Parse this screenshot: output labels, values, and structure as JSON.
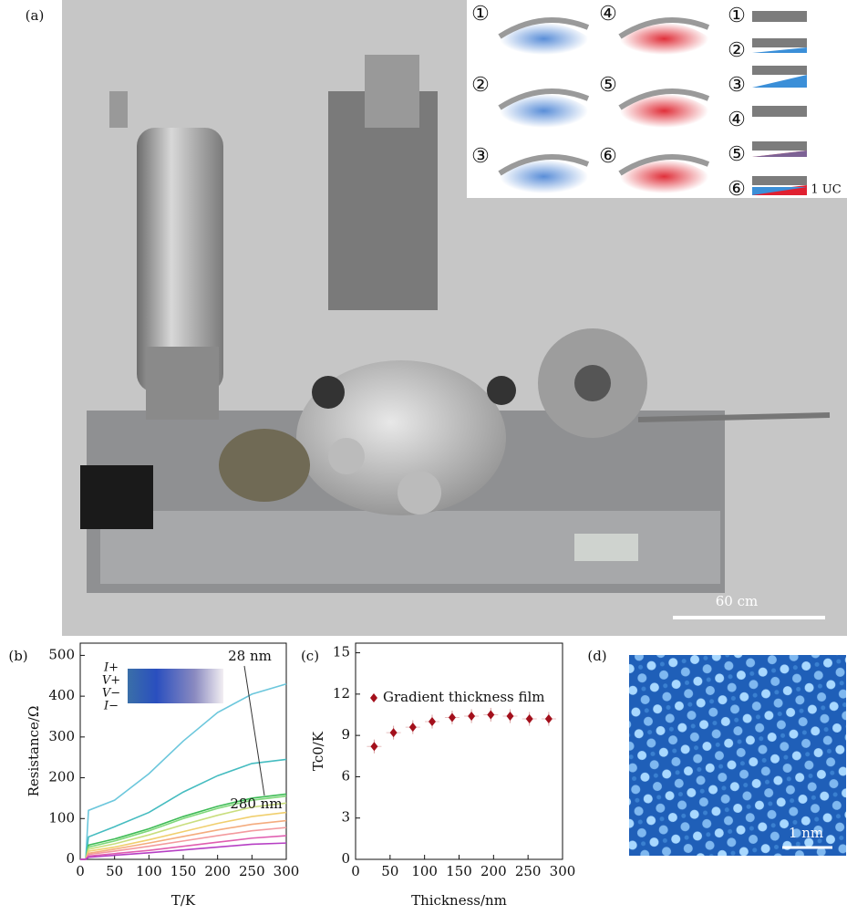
{
  "panels": {
    "a": "(a)",
    "b": "(b)",
    "c": "(c)",
    "d": "(d)"
  },
  "photo": {
    "scale_bar": "60 cm",
    "inset": {
      "steps_left": [
        "①",
        "②",
        "③"
      ],
      "steps_mid": [
        "④",
        "⑤",
        "⑥"
      ],
      "steps_right": [
        "①",
        "②",
        "③",
        "④",
        "⑤",
        "⑥"
      ],
      "layer_note": "1 UC"
    }
  },
  "stm_image": {
    "scale_bar": "1 nm"
  },
  "chart_data": [
    {
      "type": "line",
      "x_label": "T/K",
      "y_label": "Resistance/Ω",
      "x": [
        0,
        8,
        12,
        50,
        100,
        150,
        200,
        250,
        300
      ],
      "xlim": [
        0,
        300
      ],
      "xticks": [
        0,
        50,
        100,
        150,
        200,
        250,
        300
      ],
      "ylim": [
        0,
        530
      ],
      "yticks": [
        0,
        100,
        200,
        300,
        400,
        500
      ],
      "inset_labels": [
        "I+",
        "V+",
        "V−",
        "I−"
      ],
      "annotations": [
        "28 nm",
        "280 nm"
      ],
      "series": [
        {
          "color": "#6cc7dc",
          "values": [
            0,
            0,
            120,
            145,
            210,
            290,
            360,
            405,
            430
          ]
        },
        {
          "color": "#45bcc0",
          "values": [
            0,
            0,
            55,
            80,
            115,
            165,
            205,
            235,
            245
          ]
        },
        {
          "color": "#3dbb55",
          "values": [
            0,
            0,
            35,
            50,
            75,
            105,
            130,
            150,
            160
          ]
        },
        {
          "color": "#7fd87a",
          "values": [
            0,
            0,
            30,
            45,
            70,
            100,
            125,
            145,
            155
          ]
        },
        {
          "color": "#c9de7e",
          "values": [
            0,
            0,
            25,
            38,
            60,
            85,
            108,
            128,
            138
          ]
        },
        {
          "color": "#f0cf6e",
          "values": [
            0,
            0,
            20,
            30,
            48,
            68,
            88,
            105,
            115
          ]
        },
        {
          "color": "#f4ac7e",
          "values": [
            0,
            0,
            15,
            25,
            40,
            56,
            72,
            86,
            95
          ]
        },
        {
          "color": "#f39a9e",
          "values": [
            0,
            0,
            12,
            20,
            32,
            45,
            58,
            70,
            78
          ]
        },
        {
          "color": "#e05eb0",
          "values": [
            0,
            0,
            8,
            14,
            22,
            32,
            42,
            52,
            58
          ]
        },
        {
          "color": "#b63fc4",
          "values": [
            0,
            0,
            5,
            10,
            16,
            23,
            30,
            37,
            40
          ]
        }
      ]
    },
    {
      "type": "scatter",
      "x_label": "Thickness/nm",
      "y_label": "Tc0/K",
      "xlim": [
        0,
        300
      ],
      "xticks": [
        0,
        50,
        100,
        150,
        200,
        250,
        300
      ],
      "ylim": [
        0,
        15.7
      ],
      "yticks": [
        0,
        3,
        6,
        9,
        12,
        15
      ],
      "series": [
        {
          "name": "Gradient thickness film",
          "color": "#a3101c",
          "x": [
            27,
            55,
            83,
            111,
            140,
            168,
            196,
            224,
            252,
            280
          ],
          "values": [
            8.2,
            9.2,
            9.6,
            10.0,
            10.3,
            10.4,
            10.5,
            10.4,
            10.2,
            10.2
          ],
          "errors": [
            0.5,
            0.5,
            0.5,
            0.5,
            0.5,
            0.5,
            0.5,
            0.5,
            0.5,
            0.5
          ]
        }
      ]
    }
  ]
}
